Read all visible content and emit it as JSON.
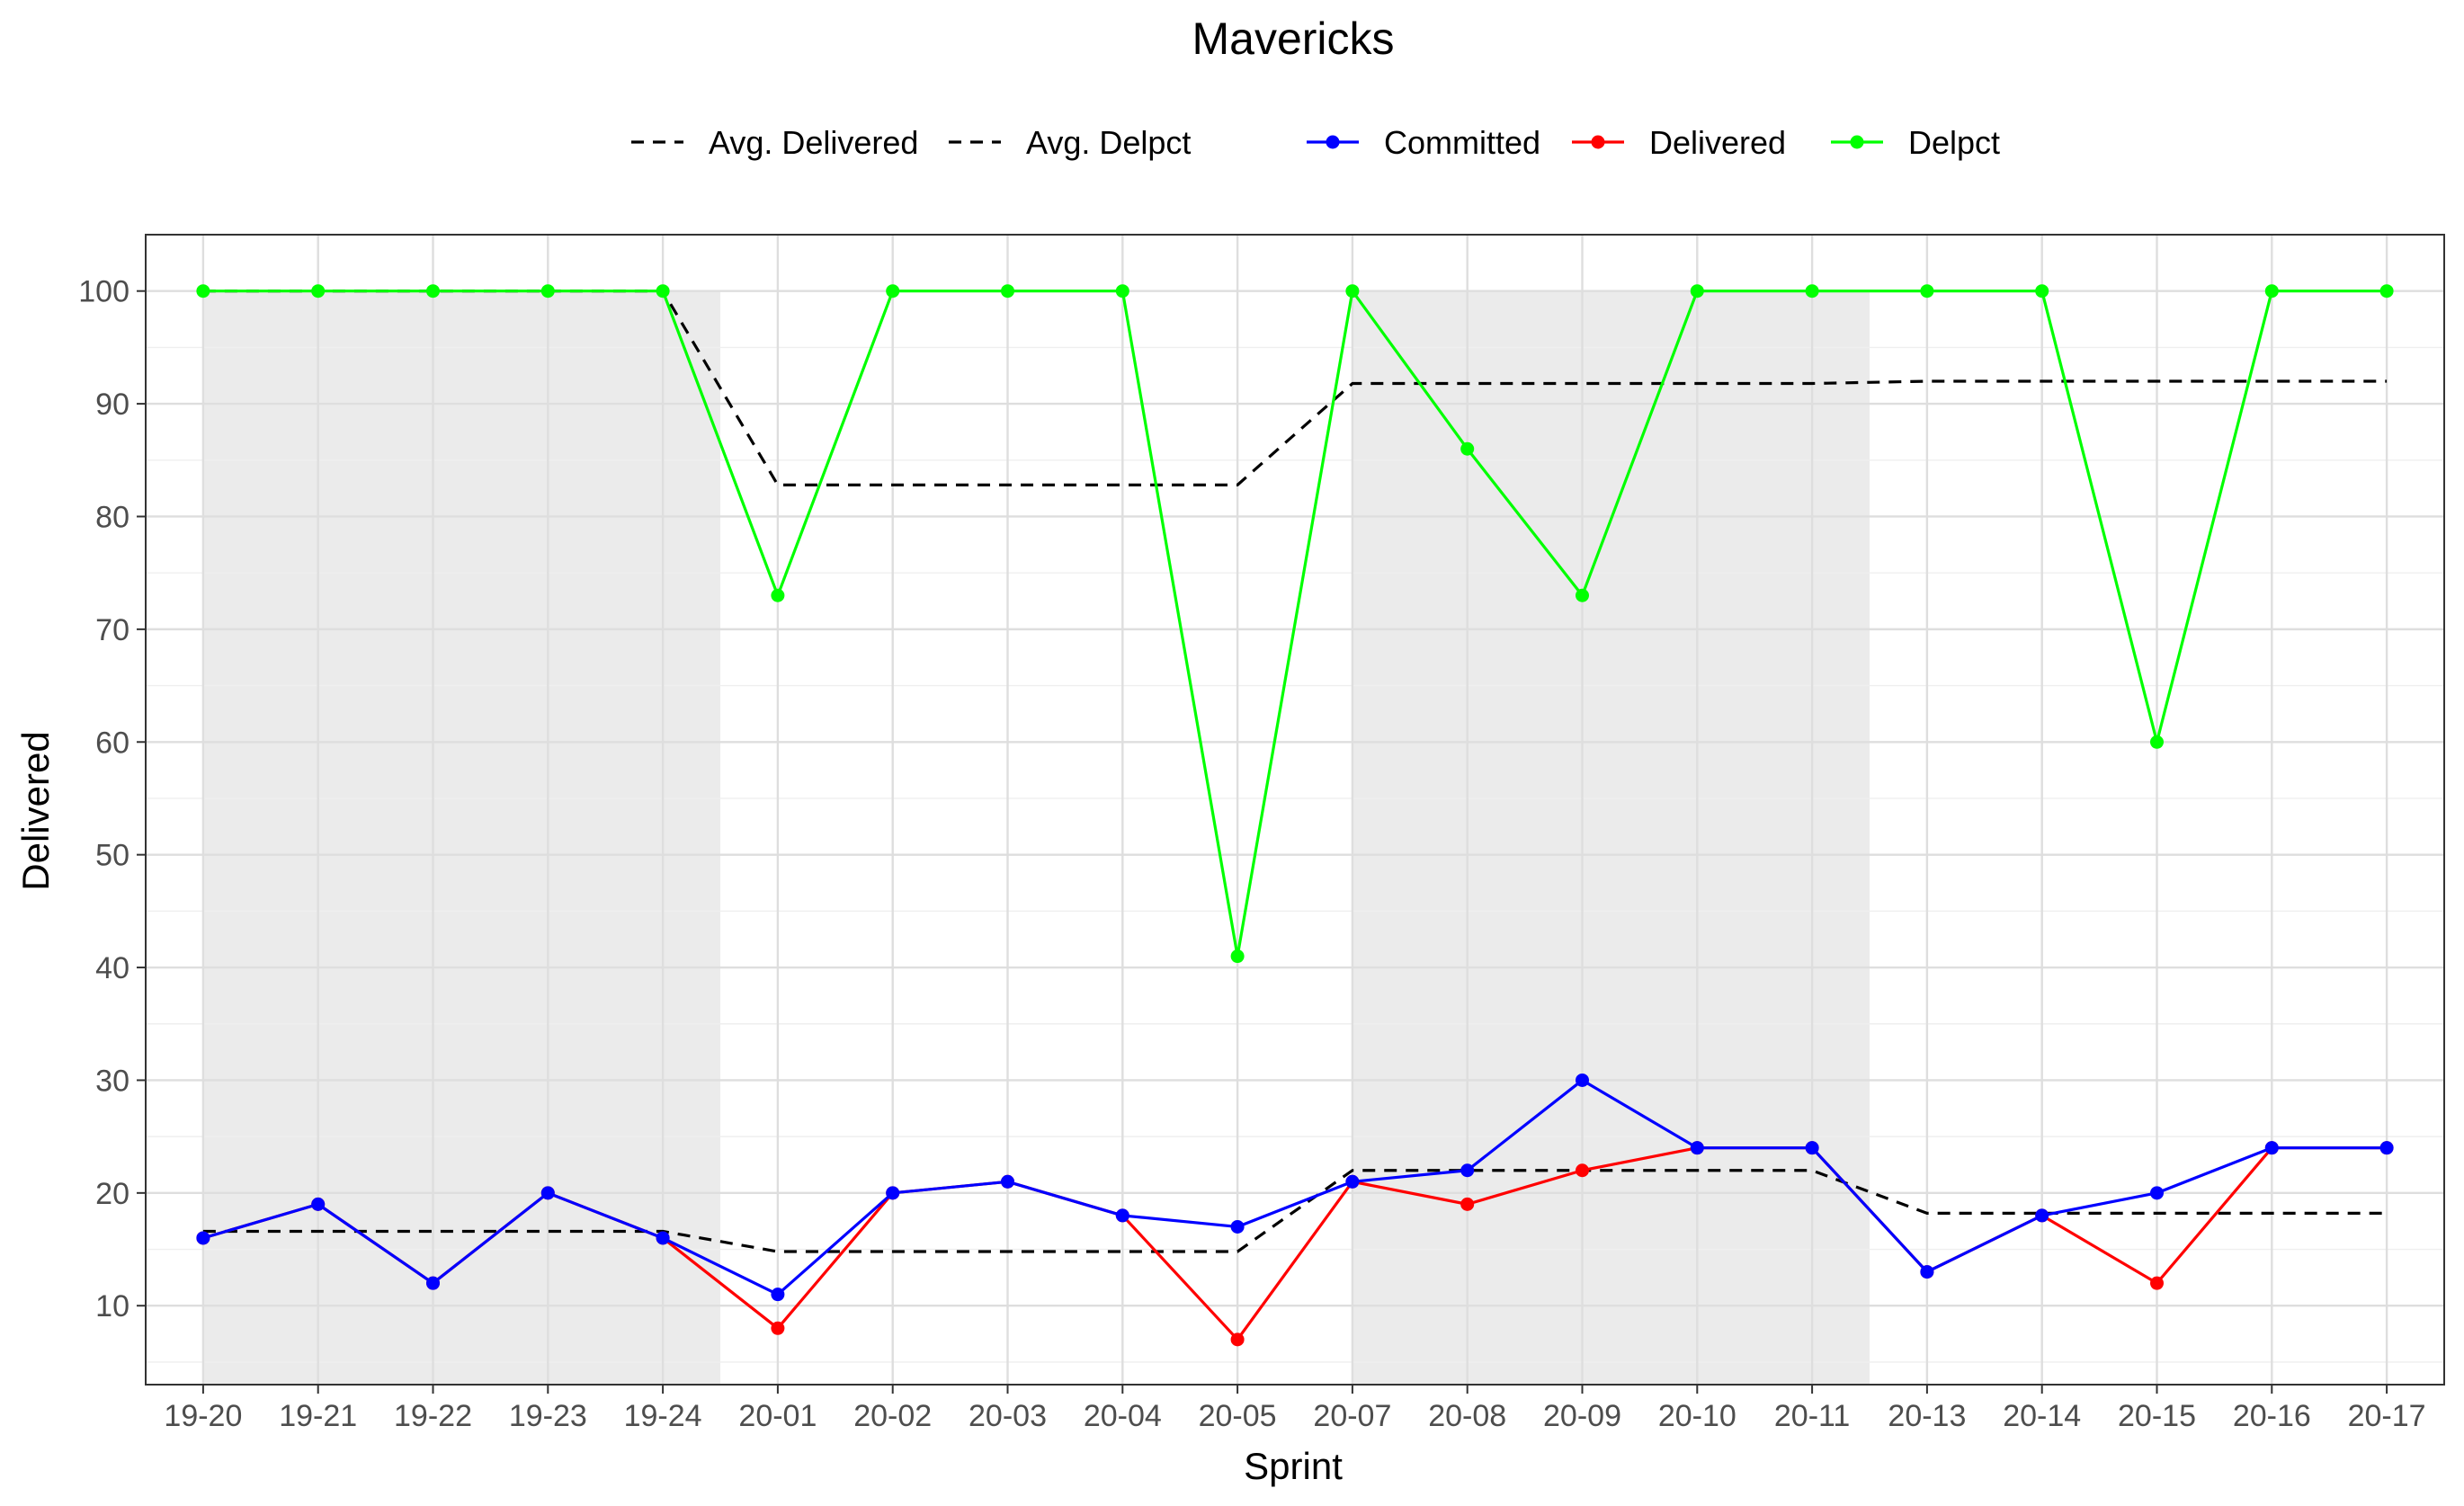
{
  "chart_data": {
    "type": "line",
    "title": "Mavericks",
    "xlabel": "Sprint",
    "ylabel": "Delivered",
    "categories": [
      "19-20",
      "19-21",
      "19-22",
      "19-23",
      "19-24",
      "20-01",
      "20-02",
      "20-03",
      "20-04",
      "20-05",
      "20-07",
      "20-08",
      "20-09",
      "20-10",
      "20-11",
      "20-13",
      "20-14",
      "20-15",
      "20-16",
      "20-17"
    ],
    "ylim": [
      3,
      105
    ],
    "yticks": [
      10,
      20,
      30,
      40,
      50,
      60,
      70,
      80,
      90,
      100
    ],
    "grid": true,
    "legend_position": "top",
    "shaded_bands": [
      {
        "from": "19-20",
        "to": "19-24",
        "color": "#ebebeb"
      },
      {
        "from": "20-07",
        "to": "20-11",
        "color": "#ebebeb"
      }
    ],
    "series": [
      {
        "name": "Committed",
        "color": "#0000ff",
        "style": "solid-points",
        "values": [
          16,
          19,
          12,
          20,
          16,
          11,
          20,
          21,
          18,
          17,
          21,
          22,
          30,
          24,
          24,
          13,
          18,
          20,
          24,
          24
        ]
      },
      {
        "name": "Delivered",
        "color": "#ff0000",
        "style": "solid-points",
        "values": [
          16,
          19,
          12,
          20,
          16,
          8,
          20,
          21,
          18,
          7,
          21,
          19,
          22,
          24,
          24,
          13,
          18,
          12,
          24,
          24
        ]
      },
      {
        "name": "Delpct",
        "color": "#00ff00",
        "style": "solid-points",
        "values": [
          100,
          100,
          100,
          100,
          100,
          73,
          100,
          100,
          100,
          41,
          100,
          86,
          73,
          100,
          100,
          100,
          100,
          60,
          100,
          100
        ]
      },
      {
        "name": "Avg. Delivered",
        "color": "#000000",
        "style": "dashed",
        "values": [
          16.6,
          16.6,
          16.6,
          16.6,
          16.6,
          14.8,
          14.8,
          14.8,
          14.8,
          14.8,
          22,
          22,
          22,
          22,
          22,
          18.2,
          18.2,
          18.2,
          18.2,
          18.2
        ]
      },
      {
        "name": "Avg. Delpct",
        "color": "#000000",
        "style": "dashed",
        "values": [
          100,
          100,
          100,
          100,
          100,
          82.8,
          82.8,
          82.8,
          82.8,
          82.8,
          91.8,
          91.8,
          91.8,
          91.8,
          91.8,
          92,
          92,
          92,
          92,
          92
        ]
      }
    ],
    "legend": {
      "dashed": [
        "Avg. Delivered",
        "Avg. Delpct"
      ],
      "solid": [
        "Committed",
        "Delivered",
        "Delpct"
      ]
    }
  }
}
